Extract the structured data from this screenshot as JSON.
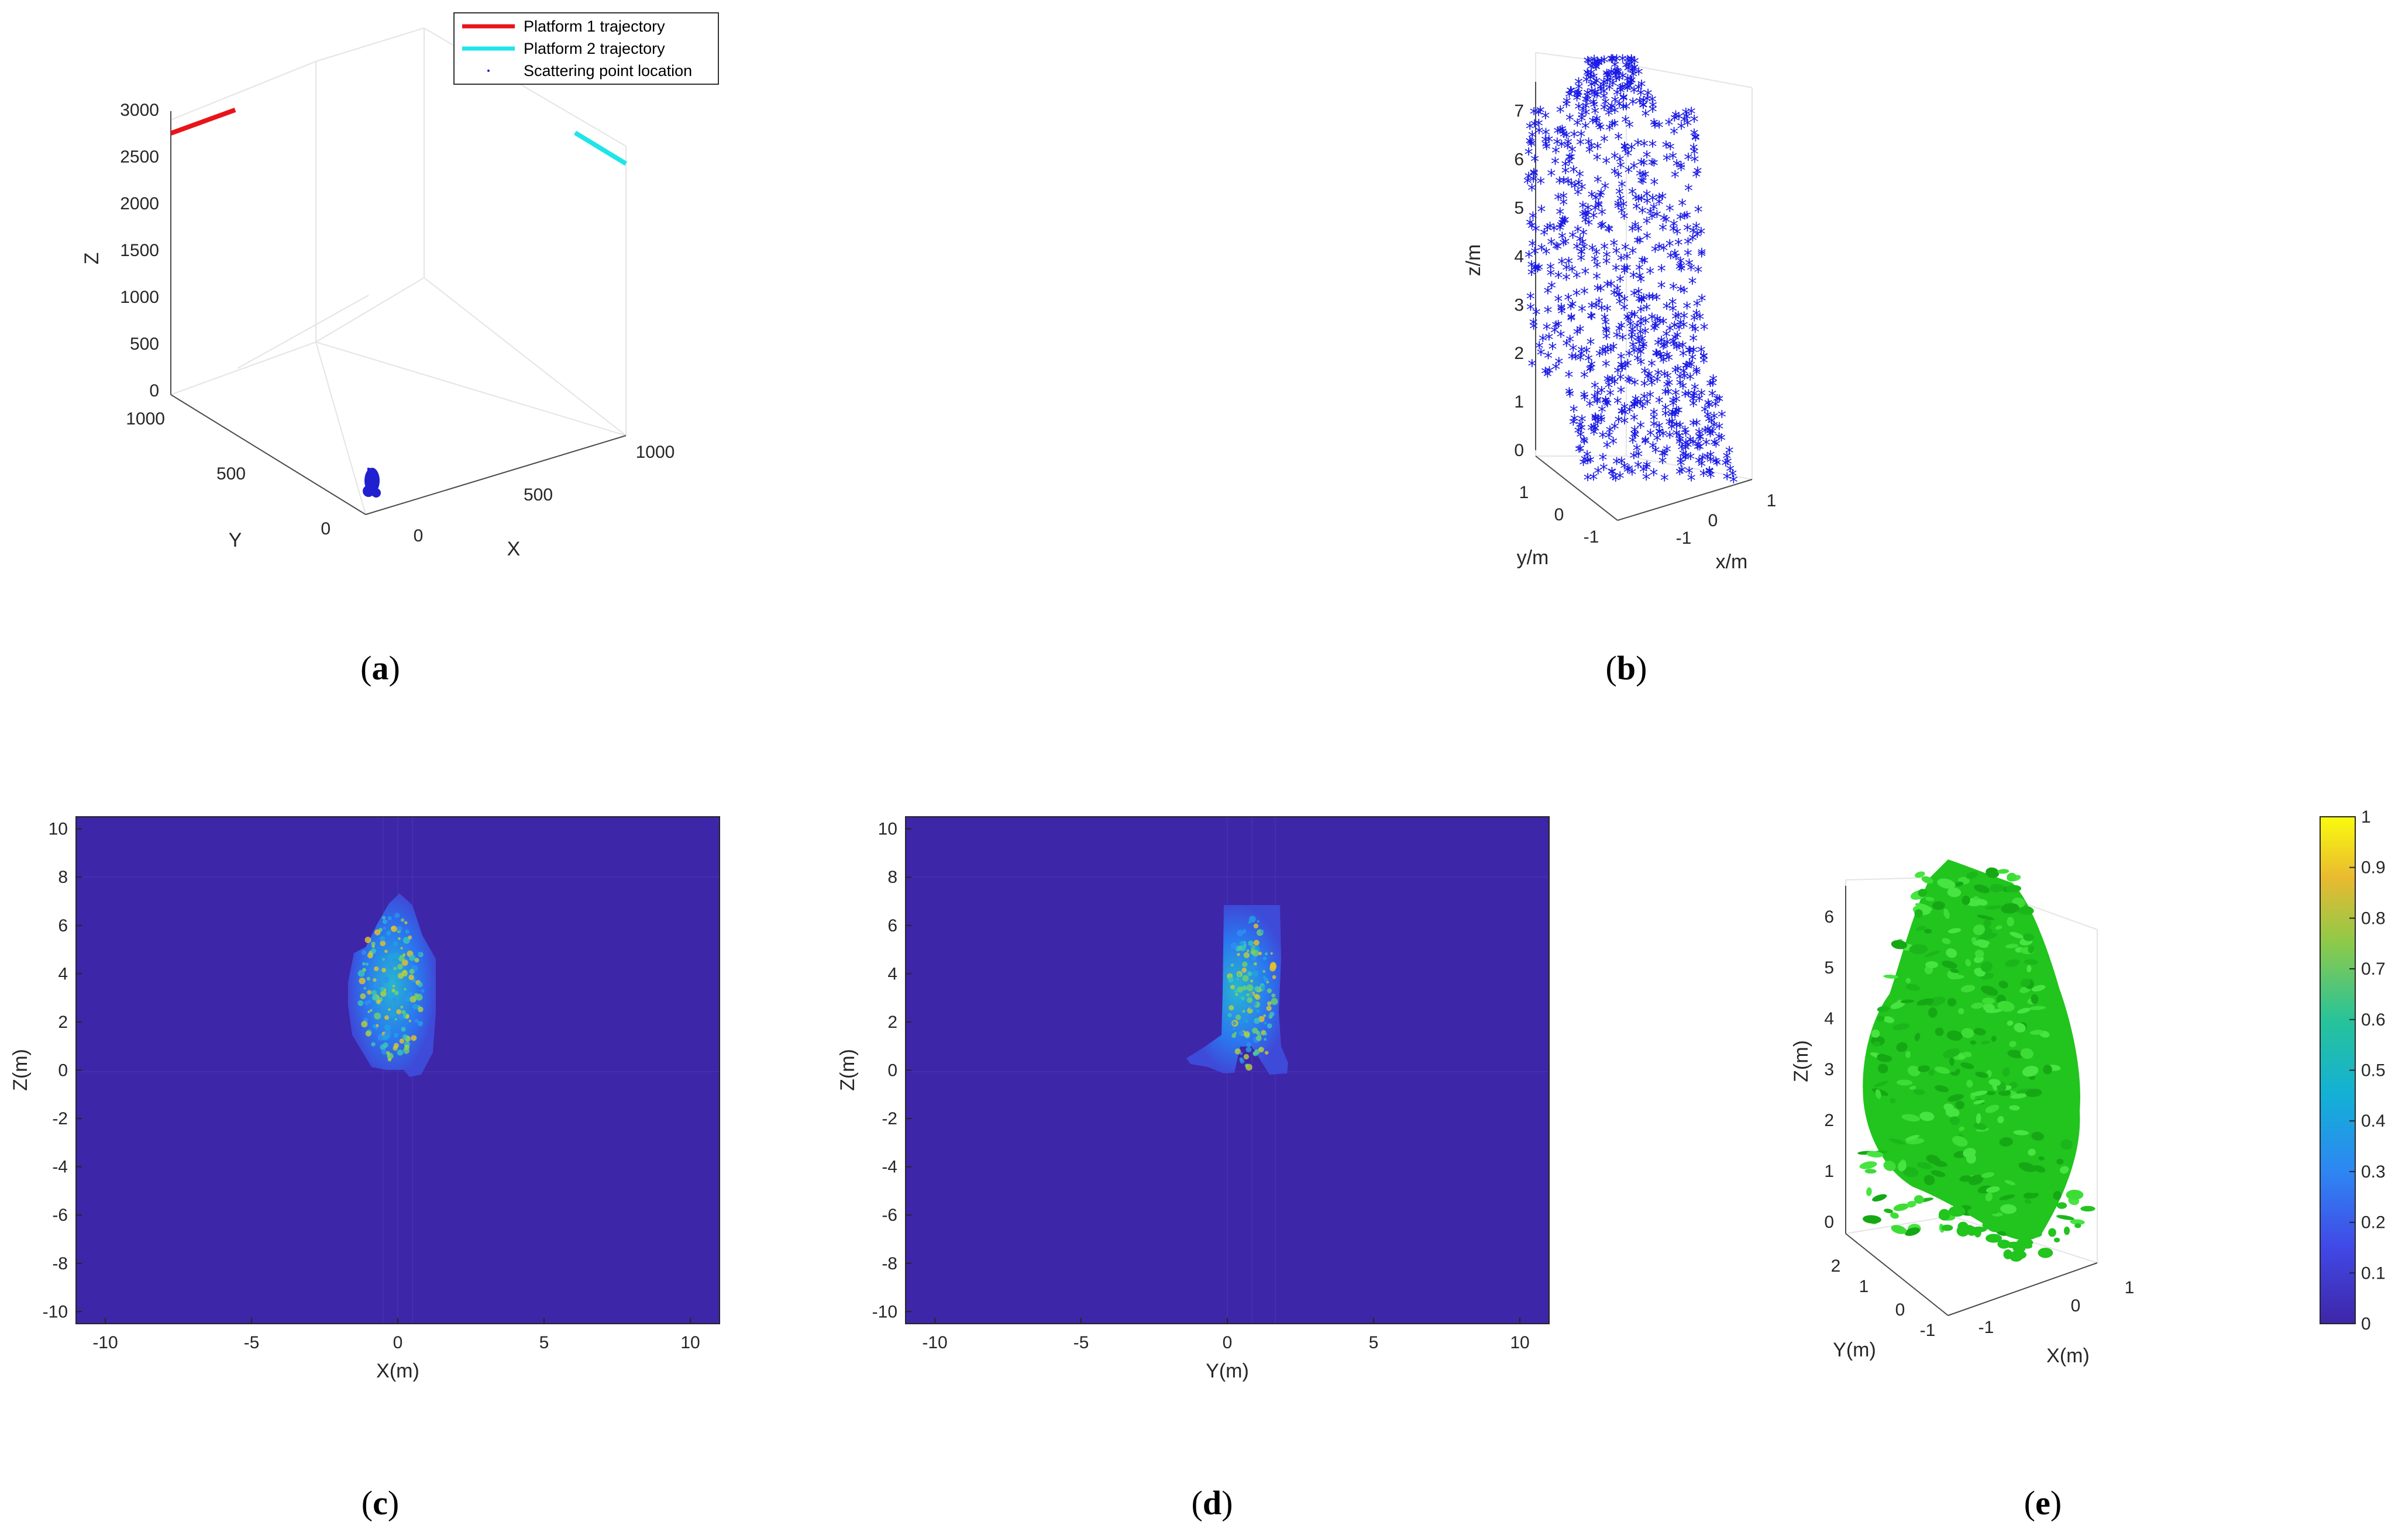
{
  "captions": [
    {
      "open": "(",
      "letter": "a",
      "close": ")"
    },
    {
      "open": "(",
      "letter": "b",
      "close": ")"
    },
    {
      "open": "(",
      "letter": "c",
      "close": ")"
    },
    {
      "open": "(",
      "letter": "d",
      "close": ")"
    },
    {
      "open": "(",
      "letter": "e",
      "close": ")"
    }
  ],
  "chart_data": [
    {
      "id": "a",
      "type": "scatter3d",
      "title": "",
      "xlabel": "X",
      "ylabel": "Y",
      "zlabel": "Z",
      "xlim": [
        0,
        1000
      ],
      "ylim": [
        0,
        1000
      ],
      "zlim": [
        0,
        3000
      ],
      "xticks": [
        "0",
        "500",
        "1000"
      ],
      "yticks": [
        "0",
        "500",
        "1000"
      ],
      "zticks": [
        "0",
        "500",
        "1000",
        "1500",
        "2000",
        "2500",
        "3000"
      ],
      "legend": [
        {
          "label": "Platform 1 trajectory",
          "color": "#e8141a"
        },
        {
          "label": "Platform 2 trajectory",
          "color": "#20e5e8"
        },
        {
          "label": "Scattering point location",
          "color": "#2020d0"
        }
      ]
    },
    {
      "id": "b",
      "type": "scatter3d",
      "xlabel": "x/m",
      "ylabel": "y/m",
      "zlabel": "z/m",
      "xticks": [
        "-1",
        "0",
        "1"
      ],
      "yticks": [
        "-1",
        "0",
        "1"
      ],
      "zticks": [
        "0",
        "1",
        "2",
        "3",
        "4",
        "5",
        "6",
        "7"
      ],
      "zlim": [
        0,
        7.6
      ],
      "marker_color": "#1a1ae6"
    },
    {
      "id": "c",
      "type": "heatmap",
      "xlabel": "X(m)",
      "ylabel": "Z(m)",
      "xlim": [
        -11,
        11
      ],
      "ylim": [
        -10.5,
        10.5
      ],
      "xticks": [
        "-10",
        "-5",
        "0",
        "5",
        "10"
      ],
      "yticks": [
        "-10",
        "-8",
        "-6",
        "-4",
        "-2",
        "0",
        "2",
        "4",
        "6",
        "8",
        "10"
      ]
    },
    {
      "id": "d",
      "type": "heatmap",
      "xlabel": "Y(m)",
      "ylabel": "Z(m)",
      "xlim": [
        -11,
        11
      ],
      "ylim": [
        -10.5,
        10.5
      ],
      "xticks": [
        "-10",
        "-5",
        "0",
        "5",
        "10"
      ],
      "yticks": [
        "-10",
        "-8",
        "-6",
        "-4",
        "-2",
        "0",
        "2",
        "4",
        "6",
        "8",
        "10"
      ]
    },
    {
      "id": "e",
      "type": "isosurface3d",
      "xlabel": "X(m)",
      "ylabel": "Y(m)",
      "zlabel": "Z(m)",
      "xticks": [
        "-1",
        "0",
        "1"
      ],
      "yticks": [
        "-1",
        "0",
        "1",
        "2"
      ],
      "zticks": [
        "0",
        "1",
        "2",
        "3",
        "4",
        "5",
        "6"
      ],
      "surface_color": "#22c41e"
    }
  ],
  "colorbar": {
    "min": 0,
    "max": 1,
    "ticks": [
      "0",
      "0.1",
      "0.2",
      "0.3",
      "0.4",
      "0.5",
      "0.6",
      "0.7",
      "0.8",
      "0.9",
      "1"
    ],
    "colormap": "parula"
  },
  "colors": {
    "background_heatmap": "#3e26a8"
  }
}
